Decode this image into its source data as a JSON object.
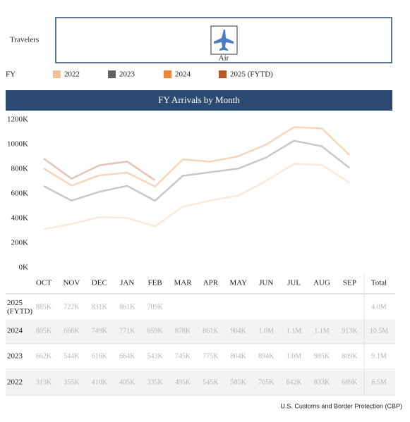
{
  "filter": {
    "label": "Travelers",
    "option": "Air"
  },
  "legend_title": "FY",
  "chart_data": {
    "type": "line",
    "title": "FY Arrivals by Month",
    "categories": [
      "OCT",
      "NOV",
      "DEC",
      "JAN",
      "FEB",
      "MAR",
      "APR",
      "MAY",
      "JUN",
      "JUL",
      "AUG",
      "SEP"
    ],
    "ylim": [
      0,
      1200000
    ],
    "yticks": [
      {
        "value": 0,
        "label": "0K"
      },
      {
        "value": 200000,
        "label": "200K"
      },
      {
        "value": 400000,
        "label": "400K"
      },
      {
        "value": 600000,
        "label": "600K"
      },
      {
        "value": 800000,
        "label": "800K"
      },
      {
        "value": 1000000,
        "label": "1000K"
      },
      {
        "value": 1200000,
        "label": "1200K"
      }
    ],
    "series": [
      {
        "name": "2022",
        "row_label": "2022",
        "color": "#f2c18f",
        "total": "6.5M",
        "values": [
          313000,
          355000,
          410000,
          405000,
          335000,
          495000,
          545000,
          585000,
          705000,
          842000,
          833000,
          689000
        ],
        "value_labels": [
          "313K",
          "355K",
          "410K",
          "405K",
          "335K",
          "495K",
          "545K",
          "585K",
          "705K",
          "842K",
          "833K",
          "689K"
        ]
      },
      {
        "name": "2023",
        "row_label": "2023",
        "color": "#5f6169",
        "total": "9.1M",
        "values": [
          662000,
          544000,
          616000,
          664000,
          543000,
          745000,
          775000,
          804000,
          894000,
          1030000,
          985000,
          809000
        ],
        "value_labels": [
          "662K",
          "544K",
          "616K",
          "664K",
          "543K",
          "745K",
          "775K",
          "804K",
          "894K",
          "1.0M",
          "985K",
          "809K"
        ]
      },
      {
        "name": "2024",
        "row_label": "2024",
        "color": "#e8883a",
        "total": "10.5M",
        "values": [
          805000,
          666000,
          749000,
          771000,
          659000,
          878000,
          861000,
          904000,
          1000000,
          1140000,
          1130000,
          913000
        ],
        "value_labels": [
          "805K",
          "666K",
          "749K",
          "771K",
          "659K",
          "878K",
          "861K",
          "904K",
          "1.0M",
          "1.1M",
          "1.1M",
          "913K"
        ]
      },
      {
        "name": "2025 (FYTD)",
        "row_label": "2025 (FYTD)",
        "color": "#b5552a",
        "total": "4.0M",
        "values": [
          885000,
          722000,
          831000,
          861000,
          709000,
          null,
          null,
          null,
          null,
          null,
          null,
          null
        ],
        "value_labels": [
          "885K",
          "722K",
          "831K",
          "861K",
          "709K",
          null,
          null,
          null,
          null,
          null,
          null,
          null
        ]
      }
    ]
  },
  "total_header": "Total",
  "source": "U.S. Customs and Border Protection (CBP)"
}
